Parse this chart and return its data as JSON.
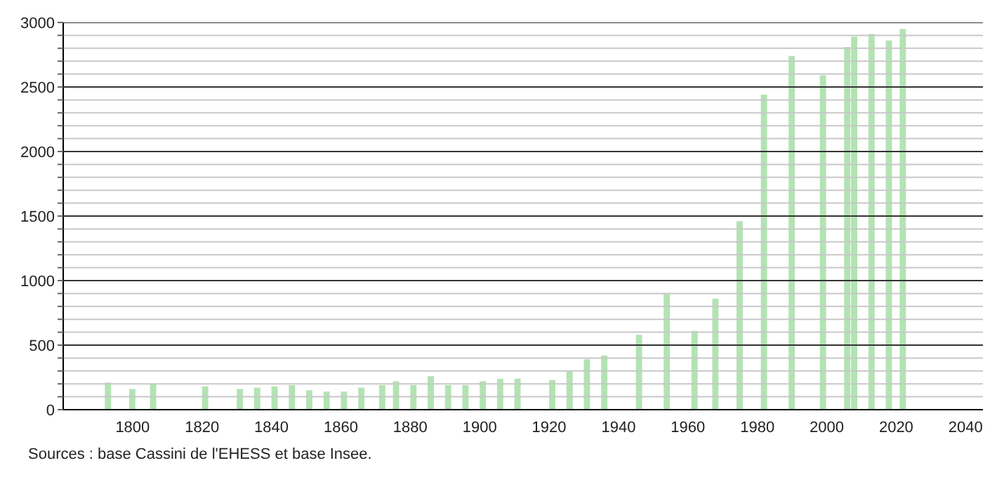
{
  "chart_data": {
    "type": "bar",
    "x": [
      1793,
      1800,
      1806,
      1821,
      1831,
      1836,
      1841,
      1846,
      1851,
      1856,
      1861,
      1866,
      1872,
      1876,
      1881,
      1886,
      1891,
      1896,
      1901,
      1906,
      1911,
      1921,
      1926,
      1931,
      1936,
      1946,
      1954,
      1962,
      1968,
      1975,
      1982,
      1990,
      1999,
      2006,
      2008,
      2013,
      2018,
      2022
    ],
    "values": [
      210,
      160,
      200,
      180,
      160,
      170,
      180,
      190,
      150,
      140,
      140,
      170,
      190,
      220,
      190,
      260,
      190,
      190,
      220,
      240,
      240,
      230,
      300,
      390,
      420,
      580,
      900,
      610,
      860,
      1460,
      2440,
      2740,
      2590,
      2810,
      2890,
      2910,
      2860,
      2950
    ],
    "color": "#b3e3b3",
    "xlim": [
      1780,
      2045
    ],
    "xticks": [
      1800,
      1820,
      1840,
      1860,
      1880,
      1900,
      1920,
      1940,
      1960,
      1980,
      2000,
      2020,
      2040
    ],
    "ylim": [
      0,
      3000
    ],
    "yticks": [
      0,
      {
        "value": 100,
        "label": null
      },
      {
        "value": 200,
        "label": null
      },
      {
        "value": 300,
        "label": null
      },
      {
        "value": 400,
        "label": null
      },
      500,
      {
        "value": 600,
        "label": null
      },
      {
        "value": 700,
        "label": null
      },
      {
        "value": 800,
        "label": null
      },
      {
        "value": 900,
        "label": null
      },
      1000,
      {
        "value": 1100,
        "label": null
      },
      {
        "value": 1200,
        "label": null
      },
      {
        "value": 1300,
        "label": null
      },
      {
        "value": 1400,
        "label": null
      },
      1500,
      {
        "value": 1600,
        "label": null
      },
      {
        "value": 1700,
        "label": null
      },
      {
        "value": 1800,
        "label": null
      },
      {
        "value": 1900,
        "label": null
      },
      2000,
      {
        "value": 2100,
        "label": null
      },
      {
        "value": 2200,
        "label": null
      },
      {
        "value": 2300,
        "label": null
      },
      {
        "value": 2400,
        "label": null
      },
      2500,
      {
        "value": 2600,
        "label": null
      },
      {
        "value": 2700,
        "label": null
      },
      {
        "value": 2800,
        "label": null
      },
      {
        "value": 2900,
        "label": null
      },
      3000
    ],
    "grid": "y",
    "annotations": [
      "Sources : base Cassini de l'EHESS et base Insee."
    ]
  }
}
